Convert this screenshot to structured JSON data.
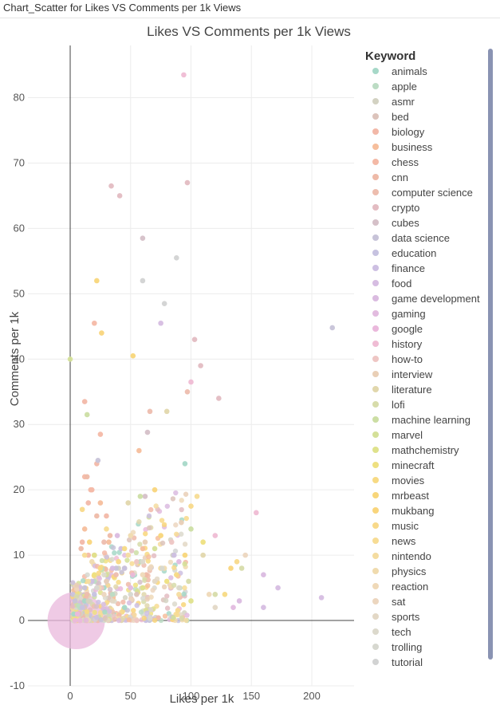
{
  "window": {
    "title": "Chart_Scatter for Likes VS Comments per 1k Views"
  },
  "chart_data": {
    "type": "scatter",
    "title": "Likes VS Comments per 1k Views",
    "xlabel": "Likes per 1k",
    "ylabel": "Comments per 1k",
    "xlim": [
      -35,
      235
    ],
    "ylim": [
      -10,
      88
    ],
    "x_ticks": [
      0,
      50,
      100,
      150,
      200
    ],
    "y_ticks": [
      -10,
      0,
      10,
      20,
      30,
      40,
      50,
      60,
      70,
      80
    ],
    "grid": true,
    "legend": {
      "title": "Keyword",
      "position": "right",
      "entries": [
        "animals",
        "apple",
        "asmr",
        "bed",
        "biology",
        "business",
        "chess",
        "cnn",
        "computer science",
        "crypto",
        "cubes",
        "data science",
        "education",
        "finance",
        "food",
        "game development",
        "gaming",
        "google",
        "history",
        "how-to",
        "interview",
        "literature",
        "lofi",
        "machine learning",
        "marvel",
        "mathchemistry",
        "minecraft",
        "movies",
        "mrbeast",
        "mukbang",
        "music",
        "news",
        "nintendo",
        "physics",
        "reaction",
        "sat",
        "sports",
        "tech",
        "trolling",
        "tutorial"
      ],
      "colors": [
        "#a6d8c8",
        "#bcdcc4",
        "#d3d2c2",
        "#dcc3bb",
        "#f2b8a8",
        "#f6be9c",
        "#f4b9a6",
        "#eebaa8",
        "#edbdae",
        "#e3bcc2",
        "#d5c0c8",
        "#c7c3d8",
        "#c6c2e0",
        "#cdbfe2",
        "#d6bde2",
        "#dabbe0",
        "#e2bbdf",
        "#eab8dc",
        "#efbcd4",
        "#eec6c4",
        "#e9cfb6",
        "#e1d7ac",
        "#d7dcaa",
        "#ccdea4",
        "#d4e098",
        "#dfe28c",
        "#eee080",
        "#f7da84",
        "#f8d67a",
        "#f9d57c",
        "#f8d98a",
        "#f7dc94",
        "#f4dca0",
        "#f0dbae",
        "#efd9b8",
        "#ecd6bf",
        "#e3d8c6",
        "#dcd9cc",
        "#d7d8d0",
        "#d2d3d3"
      ]
    },
    "series": [
      {
        "name": "animals",
        "x": [
          95,
          3,
          12,
          28,
          45
        ],
        "y": [
          24,
          1,
          3,
          5,
          2
        ]
      },
      {
        "name": "apple",
        "x": [
          8,
          20,
          35,
          58
        ],
        "y": [
          2,
          6,
          4,
          9
        ]
      },
      {
        "name": "asmr",
        "x": [
          15,
          40,
          60,
          85
        ],
        "y": [
          3,
          8,
          5,
          10
        ]
      },
      {
        "name": "bed",
        "x": [
          12,
          30,
          55
        ],
        "y": [
          2,
          7,
          4
        ]
      },
      {
        "name": "biology",
        "x": [
          10,
          15,
          18,
          22,
          30,
          12
        ],
        "y": [
          12,
          18,
          20,
          24,
          16,
          33.5
        ]
      },
      {
        "name": "business",
        "x": [
          12,
          20,
          25,
          32,
          45,
          60,
          57
        ],
        "y": [
          14,
          10,
          18,
          12,
          8,
          11,
          26
        ]
      },
      {
        "name": "chess",
        "x": [
          12,
          15,
          20,
          25,
          17
        ],
        "y": [
          22,
          10,
          45.5,
          28.5,
          20
        ]
      },
      {
        "name": "cnn",
        "x": [
          9,
          14,
          22,
          33,
          63
        ],
        "y": [
          11,
          22,
          16,
          13,
          7
        ]
      },
      {
        "name": "computer science",
        "x": [
          14,
          28,
          38,
          66,
          97
        ],
        "y": [
          4,
          12,
          7,
          32,
          35
        ]
      },
      {
        "name": "crypto",
        "x": [
          34,
          41,
          97,
          103,
          108,
          123
        ],
        "y": [
          66.5,
          65,
          67,
          43,
          39,
          34
        ]
      },
      {
        "name": "cubes",
        "x": [
          60,
          64,
          62
        ],
        "y": [
          58.5,
          28.8,
          19
        ]
      },
      {
        "name": "data science",
        "x": [
          4,
          12,
          23,
          38
        ],
        "y": [
          3,
          5,
          24.5,
          8
        ]
      },
      {
        "name": "education",
        "x": [
          10,
          20,
          30,
          45
        ],
        "y": [
          2,
          4,
          6,
          8
        ]
      },
      {
        "name": "finance",
        "x": [
          18,
          42,
          86
        ],
        "y": [
          6,
          11,
          10
        ]
      },
      {
        "name": "food",
        "x": [
          35,
          75,
          160,
          172,
          208
        ],
        "y": [
          8,
          45.5,
          2,
          5,
          3.5
        ]
      },
      {
        "name": "game development",
        "x": [
          39,
          160,
          140
        ],
        "y": [
          13,
          7,
          3
        ]
      },
      {
        "name": "gaming",
        "x": [
          50,
          90,
          135
        ],
        "y": [
          5,
          9,
          2
        ]
      },
      {
        "name": "google",
        "x": [
          4,
          6,
          8
        ],
        "y": [
          0,
          1,
          0
        ]
      },
      {
        "name": "history",
        "x": [
          94,
          154,
          120,
          100
        ],
        "y": [
          83.5,
          16.5,
          13,
          36.5
        ]
      },
      {
        "name": "how-to",
        "x": [
          26,
          55,
          84
        ],
        "y": [
          5,
          9,
          12
        ]
      },
      {
        "name": "interview",
        "x": [
          30,
          62,
          92
        ],
        "y": [
          6,
          12,
          15
        ]
      },
      {
        "name": "literature",
        "x": [
          80,
          48,
          110
        ],
        "y": [
          32,
          18,
          10
        ]
      },
      {
        "name": "lofi",
        "x": [
          120,
          98,
          142
        ],
        "y": [
          4,
          6,
          8
        ]
      },
      {
        "name": "machine learning",
        "x": [
          14,
          58,
          100
        ],
        "y": [
          31.5,
          19,
          14
        ]
      },
      {
        "name": "marvel",
        "x": [
          0,
          30,
          70
        ],
        "y": [
          40,
          7,
          11
        ]
      },
      {
        "name": "mathchemistry",
        "x": [
          20,
          60,
          100
        ],
        "y": [
          10,
          5,
          3
        ]
      },
      {
        "name": "minecraft",
        "x": [
          20,
          40,
          80,
          110
        ],
        "y": [
          7,
          9,
          6,
          12
        ]
      },
      {
        "name": "movies",
        "x": [
          25,
          45,
          88,
          128
        ],
        "y": [
          8,
          11,
          7,
          4
        ]
      },
      {
        "name": "mrbeast",
        "x": [
          22,
          52,
          75,
          95
        ],
        "y": [
          52,
          40.5,
          13,
          10
        ]
      },
      {
        "name": "mukbang",
        "x": [
          16,
          26,
          70,
          133
        ],
        "y": [
          12,
          44,
          20,
          8
        ]
      },
      {
        "name": "music",
        "x": [
          10,
          40,
          100,
          138
        ],
        "y": [
          17,
          9,
          17.5,
          9
        ]
      },
      {
        "name": "news",
        "x": [
          12,
          30,
          75,
          105
        ],
        "y": [
          10,
          14,
          8,
          19
        ]
      },
      {
        "name": "nintendo",
        "x": [
          15,
          48,
          90
        ],
        "y": [
          6,
          10,
          4
        ]
      },
      {
        "name": "physics",
        "x": [
          18,
          50,
          78
        ],
        "y": [
          9,
          13,
          8
        ]
      },
      {
        "name": "reaction",
        "x": [
          24,
          60,
          115
        ],
        "y": [
          5,
          7,
          4
        ]
      },
      {
        "name": "sat",
        "x": [
          28,
          66,
          145
        ],
        "y": [
          4,
          8,
          10
        ]
      },
      {
        "name": "sports",
        "x": [
          35,
          70,
          120
        ],
        "y": [
          3,
          6,
          2
        ]
      },
      {
        "name": "tech",
        "x": [
          28,
          60,
          90
        ],
        "y": [
          7,
          9,
          5
        ]
      },
      {
        "name": "trolling",
        "x": [
          22,
          50,
          76
        ],
        "y": [
          5,
          4,
          8
        ]
      },
      {
        "name": "tutorial",
        "x": [
          60,
          78,
          88
        ],
        "y": [
          52,
          48.5,
          55.5
        ]
      }
    ],
    "bubble": {
      "name": "google",
      "x": 5,
      "y": 0,
      "color": "#eab8dc"
    }
  }
}
